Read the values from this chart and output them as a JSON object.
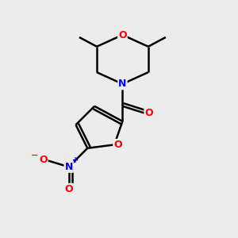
{
  "background_color": "#ececec",
  "bond_color": "#000000",
  "bond_width": 1.8,
  "atom_colors": {
    "O": "#ff0000",
    "N": "#0000ff",
    "C": "#000000"
  },
  "font_size": 9,
  "figsize": [
    3.0,
    3.0
  ],
  "dpi": 100
}
